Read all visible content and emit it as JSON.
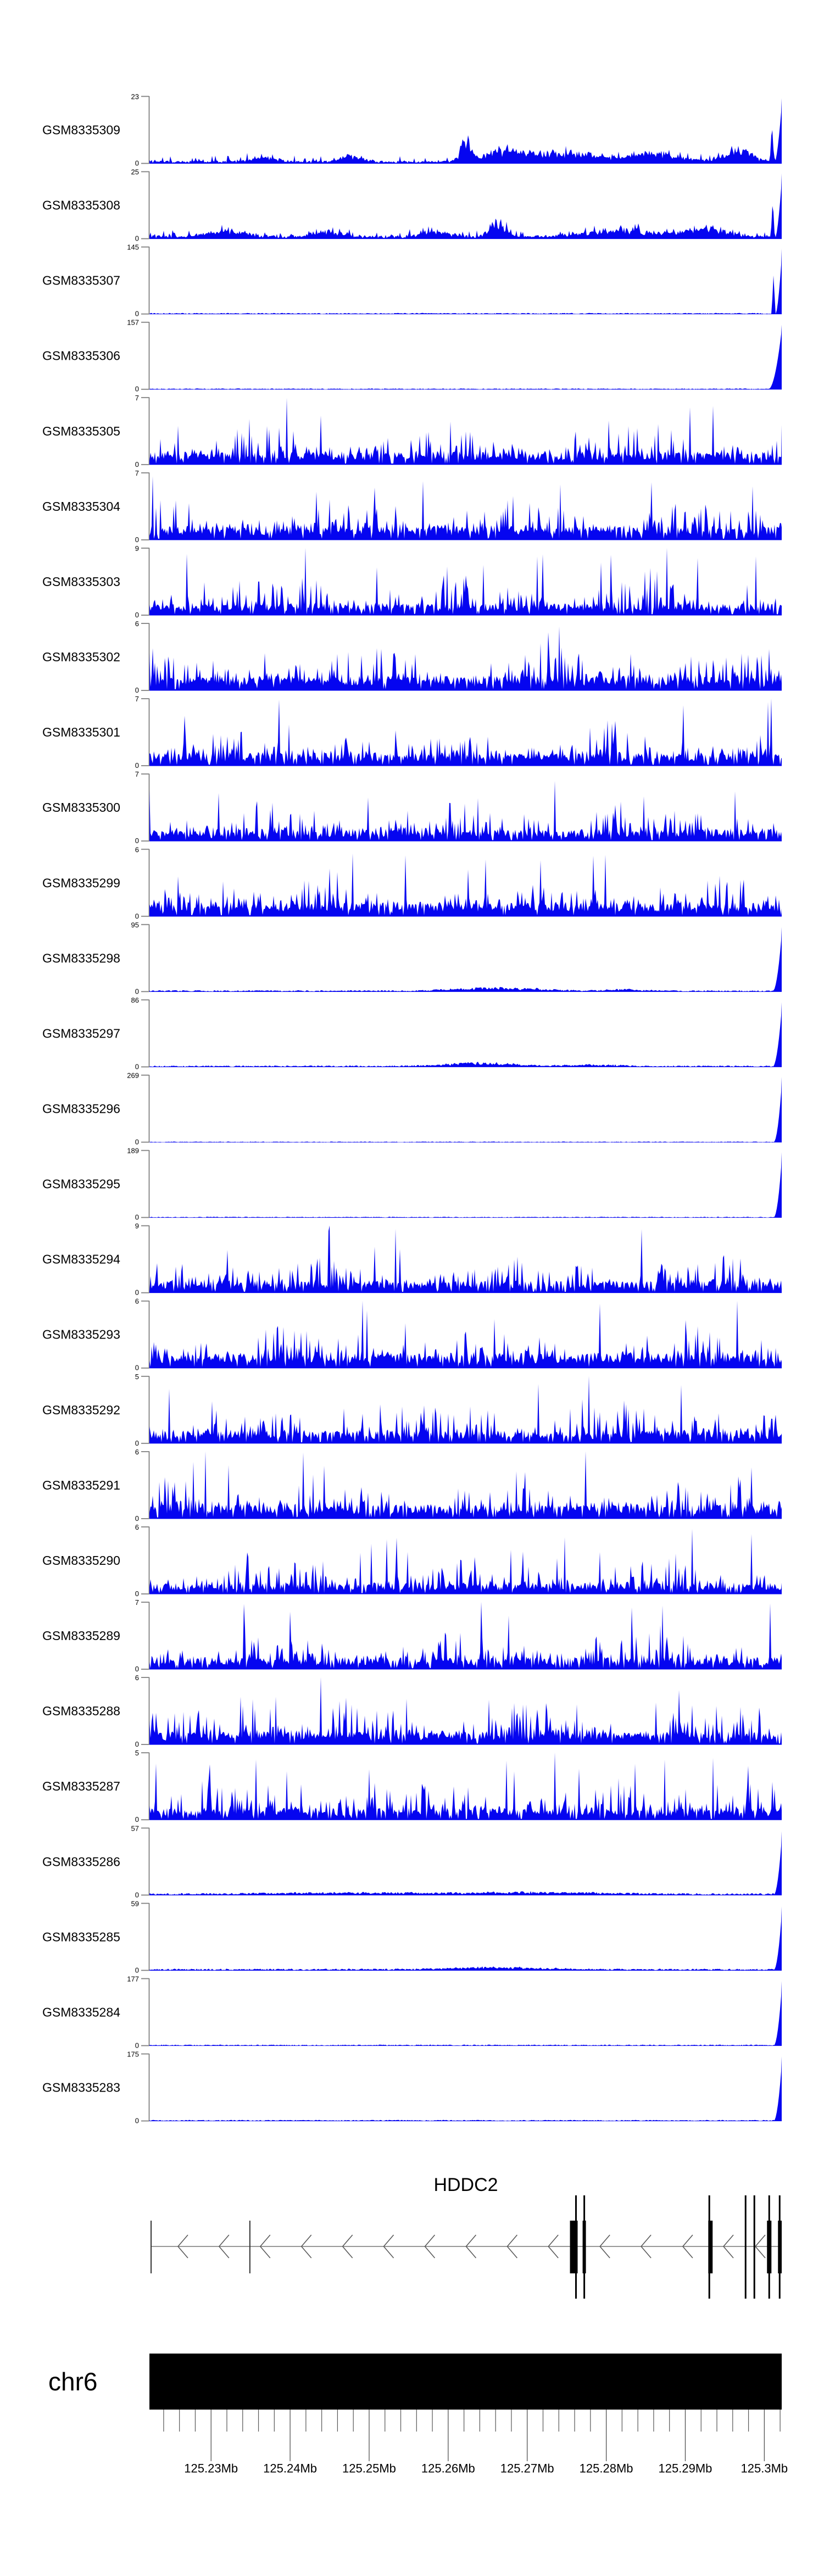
{
  "colors": {
    "signal": "#0505f0",
    "axis": "#808080",
    "gene_backbone": "#777777",
    "gene_feature": "#000000",
    "ideogram": "#000000",
    "text": "#000000",
    "background": "#ffffff"
  },
  "chart_data": {
    "type": "area",
    "description": "Genome coverage tracks over the HDDC2 locus",
    "x_axis": {
      "chrom": "chr6",
      "unit": "Mb",
      "start_mb": 125.2222,
      "end_mb": 125.3022,
      "major_ticks_mb": [
        125.23,
        125.24,
        125.25,
        125.26,
        125.27,
        125.28,
        125.29,
        125.3
      ],
      "major_tick_labels": [
        "125.23Mb",
        "125.24Mb",
        "125.25Mb",
        "125.26Mb",
        "125.27Mb",
        "125.28Mb",
        "125.29Mb",
        "125.3Mb"
      ],
      "minor_tick_start_mb": 125.224,
      "minor_tick_step_mb": 0.002
    },
    "tracks": [
      {
        "label": "GSM8335309",
        "y_min": 0,
        "y_max": 23,
        "profile": "low",
        "seed": 11,
        "floor": 0.03,
        "bumps": [
          {
            "c": 0.18,
            "w": 0.02,
            "a": 0.07
          },
          {
            "c": 0.32,
            "w": 0.015,
            "a": 0.08
          },
          {
            "c": 0.5,
            "w": 0.008,
            "a": 0.3
          },
          {
            "c": 0.56,
            "w": 0.03,
            "a": 0.16
          },
          {
            "c": 0.66,
            "w": 0.05,
            "a": 0.14
          },
          {
            "c": 0.8,
            "w": 0.04,
            "a": 0.12
          },
          {
            "c": 0.93,
            "w": 0.02,
            "a": 0.18
          }
        ],
        "peak": {
          "h": 0.97,
          "w": 26,
          "double": true
        }
      },
      {
        "label": "GSM8335308",
        "y_min": 0,
        "y_max": 25,
        "profile": "low",
        "seed": 22,
        "floor": 0.035,
        "bumps": [
          {
            "c": 0.12,
            "w": 0.03,
            "a": 0.1
          },
          {
            "c": 0.28,
            "w": 0.02,
            "a": 0.09
          },
          {
            "c": 0.45,
            "w": 0.02,
            "a": 0.07
          },
          {
            "c": 0.55,
            "w": 0.012,
            "a": 0.22
          },
          {
            "c": 0.75,
            "w": 0.05,
            "a": 0.1
          },
          {
            "c": 0.88,
            "w": 0.03,
            "a": 0.12
          }
        ],
        "peak": {
          "h": 0.97,
          "w": 24,
          "double": true
        }
      },
      {
        "label": "GSM8335307",
        "y_min": 0,
        "y_max": 145,
        "profile": "flat",
        "seed": 33,
        "floor": 0.012,
        "bumps": [],
        "peak": {
          "h": 0.97,
          "w": 22,
          "double": true
        }
      },
      {
        "label": "GSM8335306",
        "y_min": 0,
        "y_max": 157,
        "profile": "flat",
        "seed": 44,
        "floor": 0.01,
        "bumps": [],
        "peak": {
          "h": 0.96,
          "w": 26,
          "double": false
        }
      },
      {
        "label": "GSM8335305",
        "y_min": 0,
        "y_max": 7,
        "profile": "dense",
        "seed": 55,
        "floor": 0.13,
        "bumps": [],
        "peak": null
      },
      {
        "label": "GSM8335304",
        "y_min": 0,
        "y_max": 7,
        "profile": "dense",
        "seed": 66,
        "floor": 0.14,
        "bumps": [],
        "peak": null
      },
      {
        "label": "GSM8335303",
        "y_min": 0,
        "y_max": 9,
        "profile": "dense",
        "seed": 77,
        "floor": 0.12,
        "bumps": [],
        "peak": null
      },
      {
        "label": "GSM8335302",
        "y_min": 0,
        "y_max": 6,
        "profile": "dense",
        "seed": 88,
        "floor": 0.15,
        "bumps": [],
        "peak": null
      },
      {
        "label": "GSM8335301",
        "y_min": 0,
        "y_max": 7,
        "profile": "dense",
        "seed": 99,
        "floor": 0.13,
        "bumps": [],
        "peak": null
      },
      {
        "label": "GSM8335300",
        "y_min": 0,
        "y_max": 7,
        "profile": "dense",
        "seed": 110,
        "floor": 0.12,
        "bumps": [],
        "peak": null
      },
      {
        "label": "GSM8335299",
        "y_min": 0,
        "y_max": 6,
        "profile": "dense",
        "seed": 121,
        "floor": 0.14,
        "bumps": [],
        "peak": null
      },
      {
        "label": "GSM8335298",
        "y_min": 0,
        "y_max": 95,
        "profile": "flat",
        "seed": 132,
        "floor": 0.015,
        "bumps": [
          {
            "c": 0.55,
            "w": 0.06,
            "a": 0.045
          },
          {
            "c": 0.75,
            "w": 0.03,
            "a": 0.02
          }
        ],
        "peak": {
          "h": 0.96,
          "w": 18,
          "double": false
        }
      },
      {
        "label": "GSM8335297",
        "y_min": 0,
        "y_max": 86,
        "profile": "flat",
        "seed": 143,
        "floor": 0.015,
        "bumps": [
          {
            "c": 0.52,
            "w": 0.05,
            "a": 0.05
          },
          {
            "c": 0.7,
            "w": 0.04,
            "a": 0.02
          }
        ],
        "peak": {
          "h": 0.96,
          "w": 18,
          "double": false
        }
      },
      {
        "label": "GSM8335296",
        "y_min": 0,
        "y_max": 269,
        "profile": "flat",
        "seed": 154,
        "floor": 0.008,
        "bumps": [],
        "peak": {
          "h": 0.97,
          "w": 15,
          "double": false
        }
      },
      {
        "label": "GSM8335295",
        "y_min": 0,
        "y_max": 189,
        "profile": "flat",
        "seed": 165,
        "floor": 0.009,
        "bumps": [],
        "peak": {
          "h": 0.97,
          "w": 16,
          "double": false
        }
      },
      {
        "label": "GSM8335294",
        "y_min": 0,
        "y_max": 9,
        "profile": "dense",
        "seed": 176,
        "floor": 0.12,
        "bumps": [],
        "peak": null
      },
      {
        "label": "GSM8335293",
        "y_min": 0,
        "y_max": 6,
        "profile": "dense",
        "seed": 187,
        "floor": 0.15,
        "bumps": [],
        "peak": null
      },
      {
        "label": "GSM8335292",
        "y_min": 0,
        "y_max": 5,
        "profile": "dense",
        "seed": 198,
        "floor": 0.13,
        "bumps": [],
        "peak": null
      },
      {
        "label": "GSM8335291",
        "y_min": 0,
        "y_max": 6,
        "profile": "dense",
        "seed": 209,
        "floor": 0.14,
        "bumps": [],
        "peak": null
      },
      {
        "label": "GSM8335290",
        "y_min": 0,
        "y_max": 6,
        "profile": "dense",
        "seed": 220,
        "floor": 0.11,
        "bumps": [],
        "peak": null
      },
      {
        "label": "GSM8335289",
        "y_min": 0,
        "y_max": 7,
        "profile": "dense",
        "seed": 231,
        "floor": 0.12,
        "bumps": [],
        "peak": null
      },
      {
        "label": "GSM8335288",
        "y_min": 0,
        "y_max": 6,
        "profile": "dense",
        "seed": 242,
        "floor": 0.13,
        "bumps": [],
        "peak": null
      },
      {
        "label": "GSM8335287",
        "y_min": 0,
        "y_max": 5,
        "profile": "dense",
        "seed": 253,
        "floor": 0.12,
        "bumps": [],
        "peak": null
      },
      {
        "label": "GSM8335286",
        "y_min": 0,
        "y_max": 57,
        "profile": "flat",
        "seed": 264,
        "floor": 0.02,
        "bumps": [
          {
            "c": 0.3,
            "w": 0.1,
            "a": 0.02
          },
          {
            "c": 0.6,
            "w": 0.1,
            "a": 0.025
          }
        ],
        "peak": {
          "h": 0.95,
          "w": 16,
          "double": false
        }
      },
      {
        "label": "GSM8335285",
        "y_min": 0,
        "y_max": 59,
        "profile": "flat",
        "seed": 275,
        "floor": 0.018,
        "bumps": [
          {
            "c": 0.55,
            "w": 0.07,
            "a": 0.03
          }
        ],
        "peak": {
          "h": 0.95,
          "w": 16,
          "double": false
        }
      },
      {
        "label": "GSM8335284",
        "y_min": 0,
        "y_max": 177,
        "profile": "flat",
        "seed": 286,
        "floor": 0.012,
        "bumps": [],
        "peak": {
          "h": 0.96,
          "w": 15,
          "double": false
        }
      },
      {
        "label": "GSM8335283",
        "y_min": 0,
        "y_max": 175,
        "profile": "flat",
        "seed": 297,
        "floor": 0.012,
        "bumps": [],
        "peak": {
          "h": 0.96,
          "w": 16,
          "double": false
        }
      }
    ],
    "gene": {
      "name": "HDDC2",
      "strand": "-",
      "start_mb": 125.22241,
      "end_mb": 125.3022,
      "arrows_mb": [
        125.22644,
        125.23164,
        125.23685,
        125.24206,
        125.24727,
        125.25247,
        125.25768,
        125.26289,
        125.2681,
        125.2733,
        125.27983,
        125.28504,
        125.29031,
        125.29546,
        125.29949
      ],
      "boundary_lines_mb": [
        125.22241,
        125.23491
      ],
      "exon_lines_mb": [
        125.27617,
        125.27722,
        125.29304,
        125.29763,
        125.29874,
        125.30062,
        125.30194
      ],
      "cds_boxes_mb": [
        [
          125.27541,
          125.27638
        ],
        [
          125.27701,
          125.27742
        ],
        [
          125.29291,
          125.29346
        ],
        [
          125.30034,
          125.3009
        ],
        [
          125.30173,
          125.3022
        ]
      ]
    },
    "ideogram": {
      "label": "chr6"
    }
  }
}
